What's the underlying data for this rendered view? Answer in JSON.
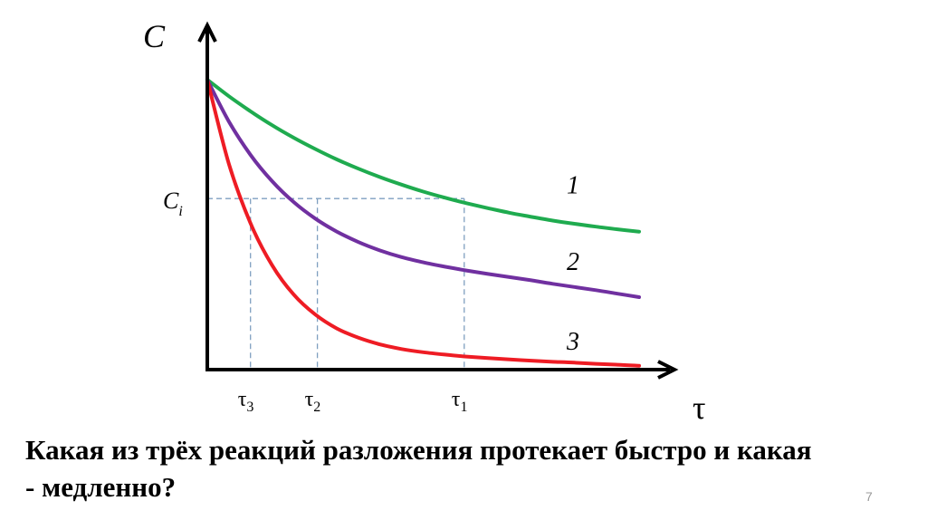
{
  "chart_data": {
    "type": "line",
    "ylabel": "C",
    "xlabel": "τ",
    "ylim": [
      0,
      1
    ],
    "xlim": [
      0,
      10
    ],
    "grid": false,
    "legend": "none",
    "series": [
      {
        "name": "1",
        "color": "#1fab4f",
        "x": [
          0,
          0.5,
          1,
          1.5,
          2,
          2.5,
          3,
          3.5,
          4,
          4.5,
          5,
          5.5,
          6,
          6.5,
          7,
          7.5,
          8,
          8.5,
          9,
          9.5,
          10
        ],
        "y": [
          1.0,
          0.943,
          0.891,
          0.843,
          0.8,
          0.761,
          0.725,
          0.693,
          0.664,
          0.638,
          0.614,
          0.593,
          0.574,
          0.557,
          0.541,
          0.527,
          0.514,
          0.503,
          0.493,
          0.484,
          0.476
        ]
      },
      {
        "name": "2",
        "color": "#7030a0",
        "x": [
          0,
          0.5,
          1,
          1.5,
          2,
          2.5,
          3,
          3.5,
          4,
          4.5,
          5,
          5.5,
          6,
          6.5,
          7,
          7.5,
          8,
          8.5,
          9,
          9.5,
          10
        ],
        "y": [
          1.0,
          0.856,
          0.741,
          0.65,
          0.578,
          0.521,
          0.476,
          0.44,
          0.411,
          0.388,
          0.37,
          0.355,
          0.342,
          0.33,
          0.319,
          0.308,
          0.296,
          0.285,
          0.274,
          0.262,
          0.25
        ]
      },
      {
        "name": "3",
        "color": "#ee1c24",
        "x": [
          0,
          0.5,
          1,
          1.5,
          2,
          2.5,
          3,
          3.5,
          4,
          4.5,
          5,
          5.5,
          6,
          6.5,
          7,
          7.5,
          8,
          8.5,
          9,
          9.5,
          10
        ],
        "y": [
          1.0,
          0.71,
          0.505,
          0.36,
          0.259,
          0.19,
          0.142,
          0.11,
          0.087,
          0.071,
          0.06,
          0.052,
          0.045,
          0.04,
          0.035,
          0.031,
          0.027,
          0.024,
          0.02,
          0.017,
          0.013
        ]
      }
    ],
    "ci_level": {
      "label": "C",
      "sub": "i",
      "value": 0.59
    },
    "markers": [
      {
        "label": "τ",
        "sub": "3",
        "x": 1.0
      },
      {
        "label": "τ",
        "sub": "2",
        "x": 2.55
      },
      {
        "label": "τ",
        "sub": "1",
        "x": 5.95
      }
    ]
  },
  "question": "Какая из трёх реакций разложения протекает быстро и какая - медленно?",
  "page_number": "7"
}
